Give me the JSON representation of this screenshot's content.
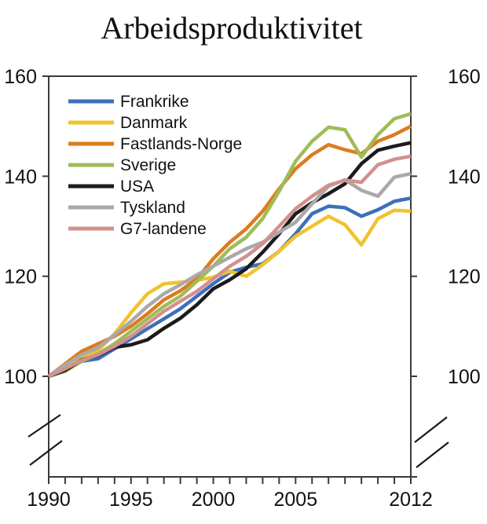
{
  "title": "Arbeidsproduktivitet",
  "chart_data": {
    "type": "line",
    "title": "Arbeidsproduktivitet",
    "x_label": "",
    "y_label": "",
    "x": [
      1990,
      1991,
      1992,
      1993,
      1994,
      1995,
      1996,
      1997,
      1998,
      1999,
      2000,
      2001,
      2002,
      2003,
      2004,
      2005,
      2006,
      2007,
      2008,
      2009,
      2010,
      2011,
      2012
    ],
    "x_tick_labels": [
      "1990",
      "1995",
      "2000",
      "2005",
      "2012"
    ],
    "x_tick_label_years": [
      1990,
      1995,
      2000,
      2005,
      2012
    ],
    "y_ticks": [
      "100",
      "120",
      "140",
      "160"
    ],
    "y_tick_values": [
      100,
      120,
      140,
      160
    ],
    "ylim_display": [
      100,
      160
    ],
    "xlim": [
      1990,
      2012
    ],
    "index_base": 100,
    "grid": false,
    "axis_break": true,
    "legend_position": "top-left-inside",
    "series": [
      {
        "name": "Frankrike",
        "color": "#3E6FB8",
        "values": [
          100,
          101.5,
          103.0,
          103.5,
          105.5,
          107.5,
          109.5,
          111.5,
          113.5,
          116.0,
          118.5,
          120.8,
          121.8,
          122.5,
          125.0,
          128.5,
          132.5,
          134.0,
          133.7,
          132.0,
          133.3,
          135.0,
          135.6
        ]
      },
      {
        "name": "Danmark",
        "color": "#F0C32E",
        "values": [
          100,
          101.8,
          103.5,
          105.2,
          108.5,
          112.7,
          116.5,
          118.5,
          118.8,
          119.2,
          119.8,
          121.0,
          120.0,
          122.3,
          125.0,
          128.0,
          130.0,
          132.0,
          130.3,
          126.3,
          131.5,
          133.2,
          133.0
        ]
      },
      {
        "name": "Fastlands-Norge",
        "color": "#DD7C1F",
        "values": [
          100,
          102.5,
          105.0,
          106.5,
          108.0,
          110.0,
          112.5,
          115.3,
          117.1,
          119.5,
          123.5,
          126.8,
          129.5,
          133.0,
          137.5,
          141.5,
          144.3,
          146.3,
          145.3,
          144.5,
          147.0,
          148.3,
          150.0
        ]
      },
      {
        "name": "Sverige",
        "color": "#A0BC57",
        "values": [
          100,
          101.0,
          103.0,
          104.5,
          106.5,
          109.0,
          111.5,
          114.0,
          116.0,
          119.0,
          122.0,
          125.5,
          127.8,
          131.5,
          137.0,
          143.0,
          147.0,
          149.8,
          149.3,
          143.8,
          148.3,
          151.5,
          152.5
        ]
      },
      {
        "name": "USA",
        "color": "#1B1B1B",
        "values": [
          100,
          101.2,
          103.3,
          104.2,
          105.8,
          106.3,
          107.3,
          109.6,
          111.6,
          114.3,
          117.5,
          119.3,
          121.5,
          124.8,
          128.5,
          132.5,
          134.7,
          136.5,
          138.5,
          142.5,
          145.2,
          146.0,
          146.7
        ]
      },
      {
        "name": "Tyskland",
        "color": "#A9A9A9",
        "values": [
          100,
          102.3,
          104.3,
          105.7,
          108.3,
          111.0,
          114.0,
          116.5,
          118.3,
          120.3,
          122.0,
          123.8,
          125.5,
          126.8,
          128.8,
          130.8,
          134.5,
          138.0,
          139.3,
          137.2,
          136.0,
          139.8,
          140.5
        ]
      },
      {
        "name": "G7-landene",
        "color": "#D2908F",
        "values": [
          100,
          101.5,
          103.2,
          104.3,
          106.0,
          108.0,
          110.5,
          113.0,
          115.0,
          117.0,
          119.5,
          122.0,
          124.0,
          126.5,
          130.0,
          133.5,
          136.0,
          138.2,
          139.2,
          138.8,
          142.3,
          143.4,
          144.0
        ]
      }
    ]
  }
}
